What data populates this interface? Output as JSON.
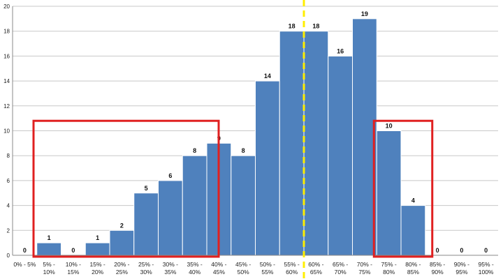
{
  "chart_data": {
    "type": "bar",
    "title": "",
    "xlabel": "",
    "ylabel": "",
    "ylim": [
      0,
      20
    ],
    "yticks": [
      0,
      2,
      4,
      6,
      8,
      10,
      12,
      14,
      16,
      18,
      20
    ],
    "grid": true,
    "legend": "none",
    "categories": [
      [
        "0% - 5%"
      ],
      [
        "5% -",
        "10%"
      ],
      [
        "10% -",
        "15%"
      ],
      [
        "15% -",
        "20%"
      ],
      [
        "20% -",
        "25%"
      ],
      [
        "25% -",
        "30%"
      ],
      [
        "30% -",
        "35%"
      ],
      [
        "35% -",
        "40%"
      ],
      [
        "40% -",
        "45%"
      ],
      [
        "45% -",
        "50%"
      ],
      [
        "50% -",
        "55%"
      ],
      [
        "55% -",
        "60%"
      ],
      [
        "60% -",
        "65%"
      ],
      [
        "65% -",
        "70%"
      ],
      [
        "70% -",
        "75%"
      ],
      [
        "75% -",
        "80%"
      ],
      [
        "80% -",
        "85%"
      ],
      [
        "85% -",
        "90%"
      ],
      [
        "90% -",
        "95%"
      ],
      [
        "95% -",
        "100%"
      ]
    ],
    "values": [
      0,
      1,
      0,
      1,
      2,
      5,
      6,
      8,
      9,
      8,
      14,
      18,
      18,
      16,
      19,
      10,
      4,
      0,
      0,
      0
    ],
    "reference_line": {
      "x_between": [
        11,
        12
      ],
      "style": "dashed",
      "color": "#ffee00"
    },
    "highlight_boxes": [
      {
        "from_index": 0,
        "to_index": 7,
        "y_top": 10.8,
        "color": "#e02020"
      },
      {
        "from_index": 15,
        "to_index": 16,
        "y_top": 10.8,
        "color": "#e02020"
      }
    ],
    "colors": {
      "bar": "#4f81bd",
      "bar_edge": "#ffffff",
      "grid": "#c8c8c8"
    }
  }
}
